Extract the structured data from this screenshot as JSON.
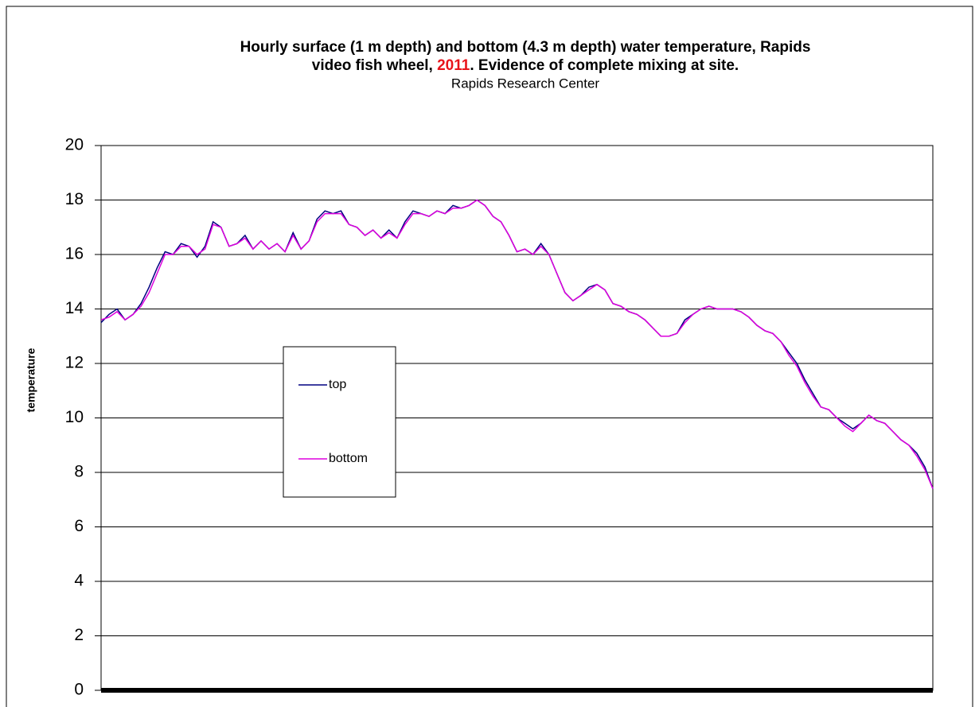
{
  "chart_data": {
    "type": "line",
    "title": {
      "line1": "Hourly surface (1 m depth) and bottom (4.3 m depth) water temperature, Rapids",
      "line2_start": "video fish wheel, ",
      "year": "2011",
      "line2_end": ".  Evidence of complete mixing at site.",
      "year_color": "#e8141b"
    },
    "subtitle": "Rapids Research Center",
    "ylabel": "temperature",
    "ylim": [
      0,
      20
    ],
    "yticks": [
      0,
      2,
      4,
      6,
      8,
      10,
      12,
      14,
      16,
      18,
      20
    ],
    "grid": true,
    "legend": "center-left",
    "series": [
      {
        "name": "top",
        "color": "#000080",
        "values": [
          13.5,
          13.8,
          14.0,
          13.6,
          13.8,
          14.2,
          14.8,
          15.5,
          16.1,
          16.0,
          16.4,
          16.3,
          15.9,
          16.3,
          17.2,
          17.0,
          16.3,
          16.4,
          16.7,
          16.2,
          16.5,
          16.2,
          16.4,
          16.1,
          16.8,
          16.2,
          16.5,
          17.3,
          17.6,
          17.5,
          17.6,
          17.1,
          17.0,
          16.7,
          16.9,
          16.6,
          16.9,
          16.6,
          17.2,
          17.6,
          17.5,
          17.4,
          17.6,
          17.5,
          17.8,
          17.7,
          17.8,
          18.0,
          17.8,
          17.4,
          17.2,
          16.7,
          16.1,
          16.2,
          16.0,
          16.4,
          16.0,
          15.3,
          14.6,
          14.3,
          14.5,
          14.8,
          14.9,
          14.7,
          14.2,
          14.1,
          13.9,
          13.8,
          13.6,
          13.3,
          13.0,
          13.0,
          13.1,
          13.6,
          13.8,
          14.0,
          14.1,
          14.0,
          14.0,
          14.0,
          13.9,
          13.7,
          13.4,
          13.2,
          13.1,
          12.8,
          12.4,
          12.0,
          11.4,
          10.9,
          10.4,
          10.3,
          10.0,
          9.8,
          9.6,
          9.8,
          10.1,
          9.9,
          9.8,
          9.5,
          9.2,
          9.0,
          8.7,
          8.2,
          7.4
        ]
      },
      {
        "name": "bottom",
        "color": "#dd00dd",
        "values": [
          13.6,
          13.7,
          13.9,
          13.6,
          13.8,
          14.1,
          14.6,
          15.3,
          16.0,
          16.0,
          16.3,
          16.3,
          16.0,
          16.2,
          17.1,
          17.0,
          16.3,
          16.4,
          16.6,
          16.2,
          16.5,
          16.2,
          16.4,
          16.1,
          16.7,
          16.2,
          16.5,
          17.2,
          17.5,
          17.5,
          17.5,
          17.1,
          17.0,
          16.7,
          16.9,
          16.6,
          16.8,
          16.6,
          17.1,
          17.5,
          17.5,
          17.4,
          17.6,
          17.5,
          17.7,
          17.7,
          17.8,
          18.0,
          17.8,
          17.4,
          17.2,
          16.7,
          16.1,
          16.2,
          16.0,
          16.3,
          16.0,
          15.3,
          14.6,
          14.3,
          14.5,
          14.7,
          14.9,
          14.7,
          14.2,
          14.1,
          13.9,
          13.8,
          13.6,
          13.3,
          13.0,
          13.0,
          13.1,
          13.5,
          13.8,
          14.0,
          14.1,
          14.0,
          14.0,
          14.0,
          13.9,
          13.7,
          13.4,
          13.2,
          13.1,
          12.8,
          12.3,
          11.9,
          11.3,
          10.8,
          10.4,
          10.3,
          10.0,
          9.7,
          9.5,
          9.8,
          10.1,
          9.9,
          9.8,
          9.5,
          9.2,
          9.0,
          8.6,
          8.1,
          7.4
        ]
      }
    ]
  }
}
